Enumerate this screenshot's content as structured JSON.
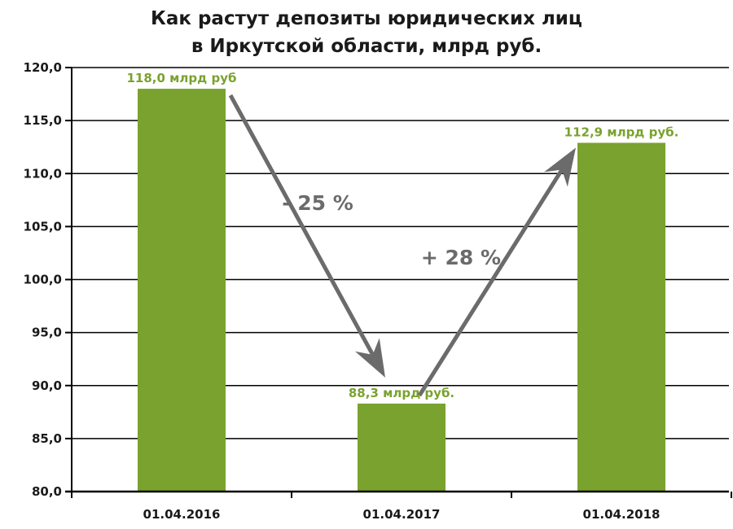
{
  "chart_data": {
    "type": "bar",
    "title": "Как растут депозиты юридических лиц",
    "subtitle": "в Иркутской области,  млрд руб.",
    "categories": [
      "01.04.2016",
      "01.04.2017",
      "01.04.2018"
    ],
    "values": [
      118.0,
      88.3,
      112.9
    ],
    "data_labels": [
      "118,0 млрд руб",
      "88,3 млрд руб.",
      "112,9 млрд руб."
    ],
    "ylim": [
      80,
      120
    ],
    "yticks": [
      "80,0",
      "85,0",
      "90,0",
      "95,0",
      "100,0",
      "105,0",
      "110,0",
      "115,0",
      "120,0"
    ],
    "grid": true,
    "xlabel": "",
    "ylabel": "",
    "annotations": [
      {
        "text": "- 25 %",
        "from": 0,
        "to": 1
      },
      {
        "text": "+ 28 %",
        "from": 1,
        "to": 2
      }
    ],
    "colors": {
      "bar": "#7aa22f",
      "label": "#7aa22f",
      "arrow": "#6b6b6b",
      "grid": "#000000"
    }
  }
}
